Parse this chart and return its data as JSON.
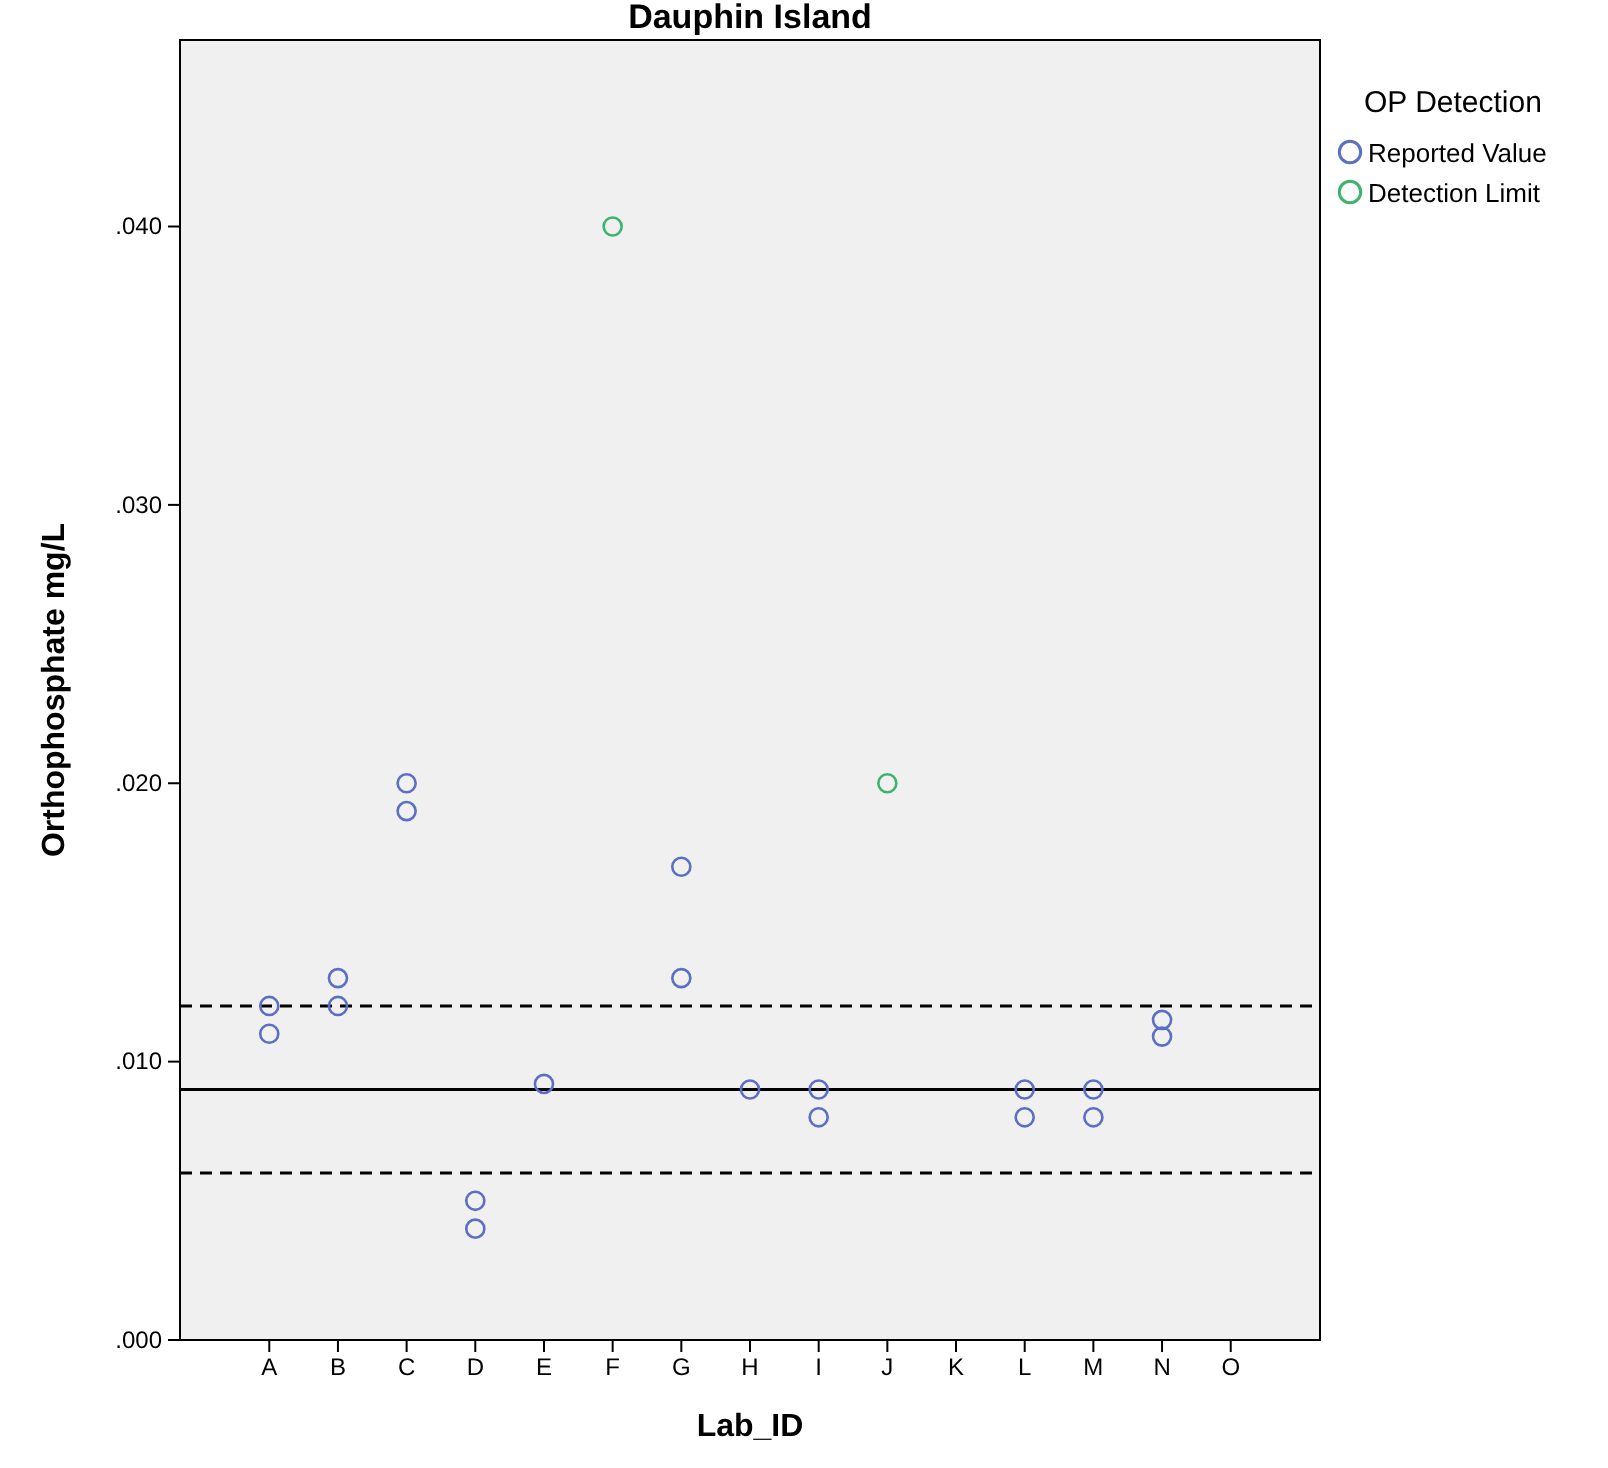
{
  "chart_data": {
    "type": "scatter",
    "title": "Dauphin Island",
    "xlabel": "Lab_ID",
    "ylabel": "Orthophosphate mg/L",
    "legend_title": "OP Detection",
    "categories": [
      "A",
      "B",
      "C",
      "D",
      "E",
      "F",
      "G",
      "H",
      "I",
      "J",
      "K",
      "L",
      "M",
      "N",
      "O"
    ],
    "series": [
      {
        "name": "Reported Value",
        "color": "#5b6fc4",
        "x": [
          "A",
          "A",
          "B",
          "B",
          "C",
          "C",
          "D",
          "D",
          "E",
          "G",
          "G",
          "H",
          "I",
          "I",
          "L",
          "L",
          "M",
          "M",
          "N",
          "N"
        ],
        "values": [
          0.012,
          0.011,
          0.013,
          0.012,
          0.02,
          0.019,
          0.005,
          0.004,
          0.0092,
          0.017,
          0.013,
          0.009,
          0.009,
          0.008,
          0.009,
          0.008,
          0.009,
          0.008,
          0.0115,
          0.0109
        ]
      },
      {
        "name": "Detection Limit",
        "color": "#3cb46e",
        "x": [
          "F",
          "J"
        ],
        "values": [
          0.04,
          0.02
        ]
      }
    ],
    "ylim": [
      0,
      0.0467
    ],
    "yticks": [
      {
        "value": 0,
        "label": ".000"
      },
      {
        "value": 0.01,
        "label": ".010"
      },
      {
        "value": 0.02,
        "label": ".020"
      },
      {
        "value": 0.03,
        "label": ".030"
      },
      {
        "value": 0.04,
        "label": ".040"
      }
    ],
    "ref_lines": [
      {
        "axis": "y",
        "value": 0.012,
        "line_style": "dashed",
        "color": "#000000"
      },
      {
        "axis": "y",
        "value": 0.009,
        "line_style": "solid",
        "color": "#000000"
      },
      {
        "axis": "y",
        "value": 0.006,
        "line_style": "dashed",
        "color": "#000000"
      }
    ],
    "marker": "circle",
    "legend": "right",
    "grid": false
  }
}
